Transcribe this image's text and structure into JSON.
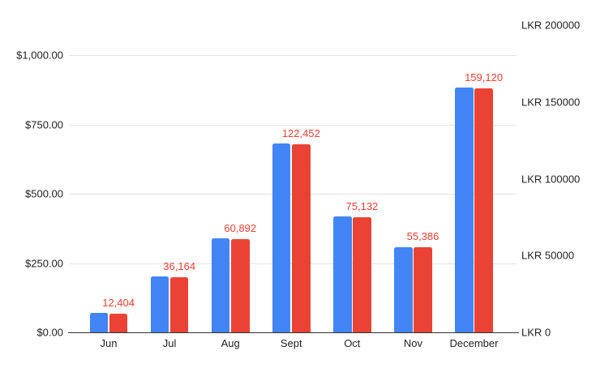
{
  "chart_data": {
    "type": "bar",
    "title": "",
    "legend": "none",
    "grid": true,
    "background": "#ffffff",
    "categories": [
      "Jun",
      "Jul",
      "Aug",
      "Sept",
      "Oct",
      "Nov",
      "December"
    ],
    "series": [
      {
        "name": "blue-usd-series",
        "color": "#4285f4",
        "axis": "left",
        "values": [
          69,
          201,
          338,
          680,
          417,
          308,
          884
        ]
      },
      {
        "name": "red-lkr-series",
        "color": "#ea4335",
        "axis": "right",
        "values": [
          12404,
          36164,
          60892,
          122452,
          75132,
          55386,
          159120
        ],
        "data_labels": [
          "12,404",
          "36,164",
          "60,892",
          "122,452",
          "75,132",
          "55,386",
          "159,120"
        ]
      }
    ],
    "left_axis": {
      "tick_labels": [
        "$0.00",
        "$250.00",
        "$500.00",
        "$750.00",
        "$1,000.00"
      ],
      "tick_values": [
        0,
        250,
        500,
        750,
        1000
      ],
      "min": 0,
      "max": 1000
    },
    "right_axis": {
      "tick_labels": [
        "LKR 0",
        "LKR 50000",
        "LKR 100000",
        "LKR 150000",
        "LKR 200000"
      ],
      "tick_values": [
        0,
        50000,
        100000,
        150000,
        200000
      ],
      "min": 0,
      "max": 200000
    },
    "colors": {
      "data_label": "#ea4335",
      "axis_text": "#1f1f1f",
      "gridline": "#e3e3e3",
      "baseline": "#333333"
    }
  }
}
